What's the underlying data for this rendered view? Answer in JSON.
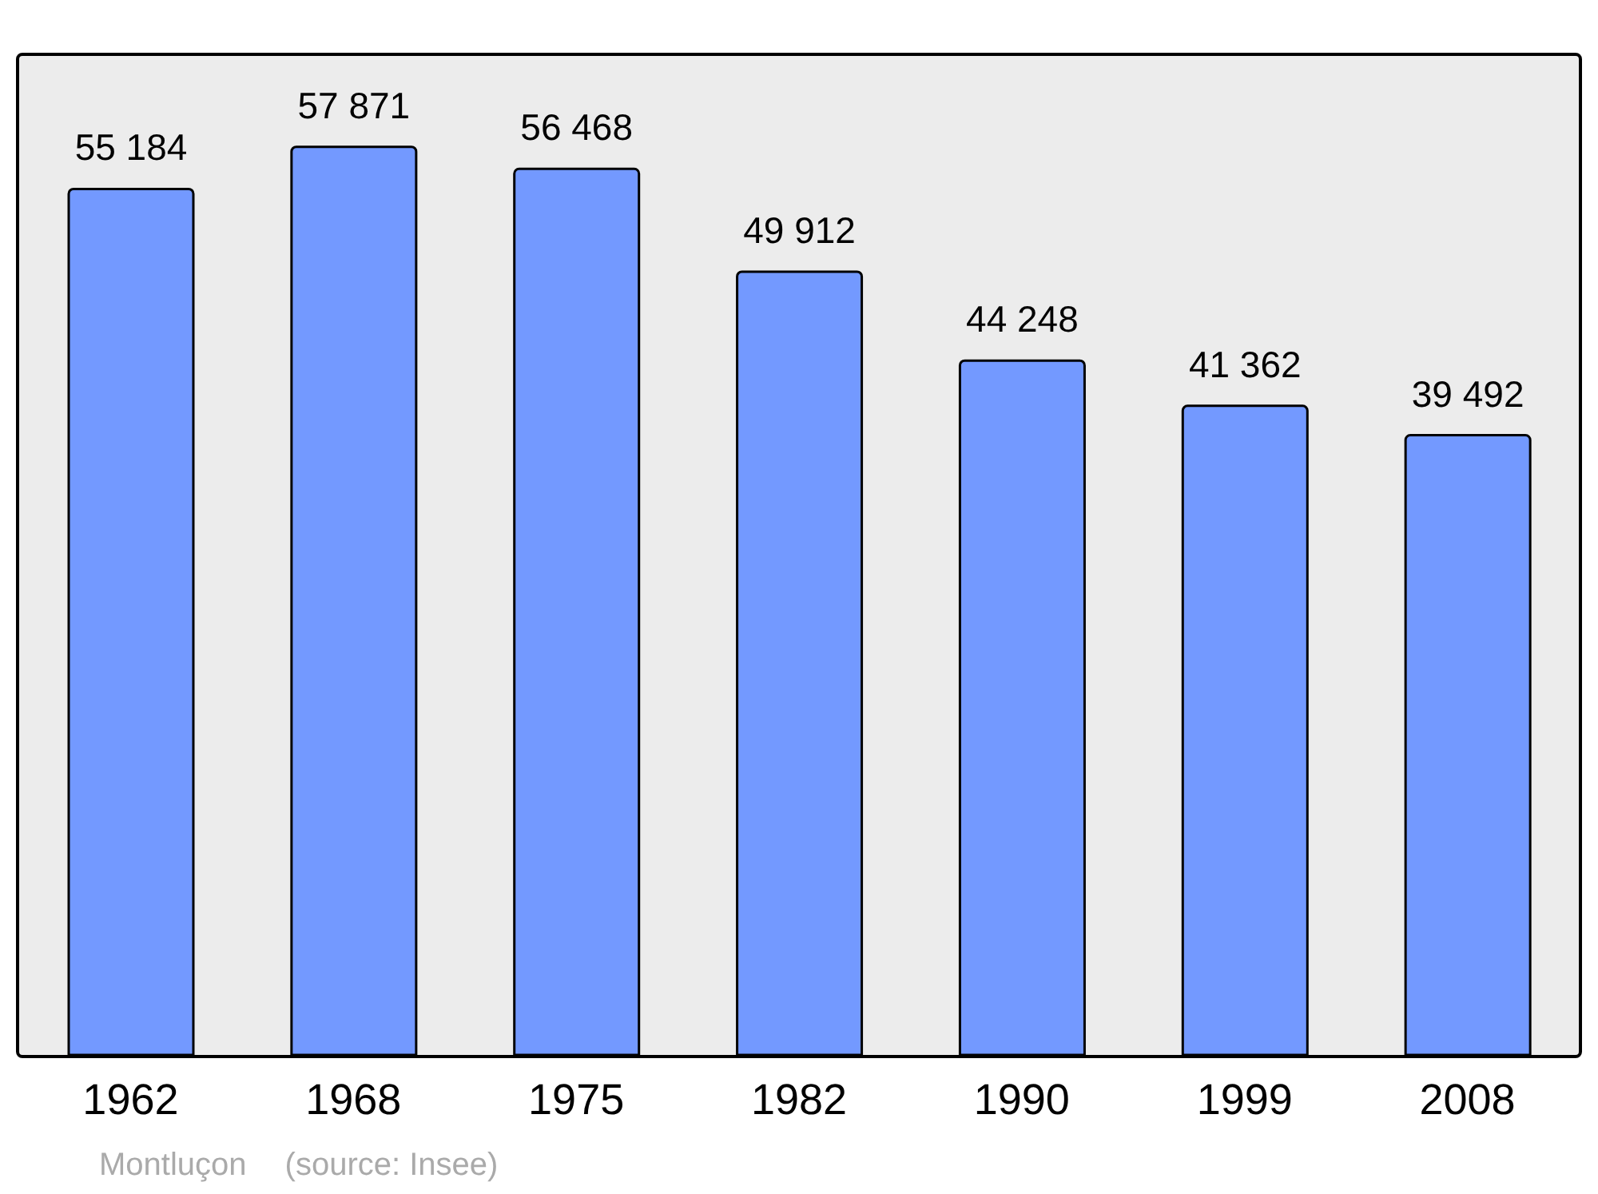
{
  "chart_data": {
    "type": "bar",
    "categories": [
      "1962",
      "1968",
      "1975",
      "1982",
      "1990",
      "1999",
      "2008"
    ],
    "values": [
      55184,
      57871,
      56468,
      49912,
      44248,
      41362,
      39492
    ],
    "value_labels": [
      "55 184",
      "57 871",
      "56 468",
      "49 912",
      "44 248",
      "41 362",
      "39 492"
    ],
    "color": "#7399ff",
    "annotations": [
      "Montluçon",
      "(source: Insee)"
    ]
  }
}
